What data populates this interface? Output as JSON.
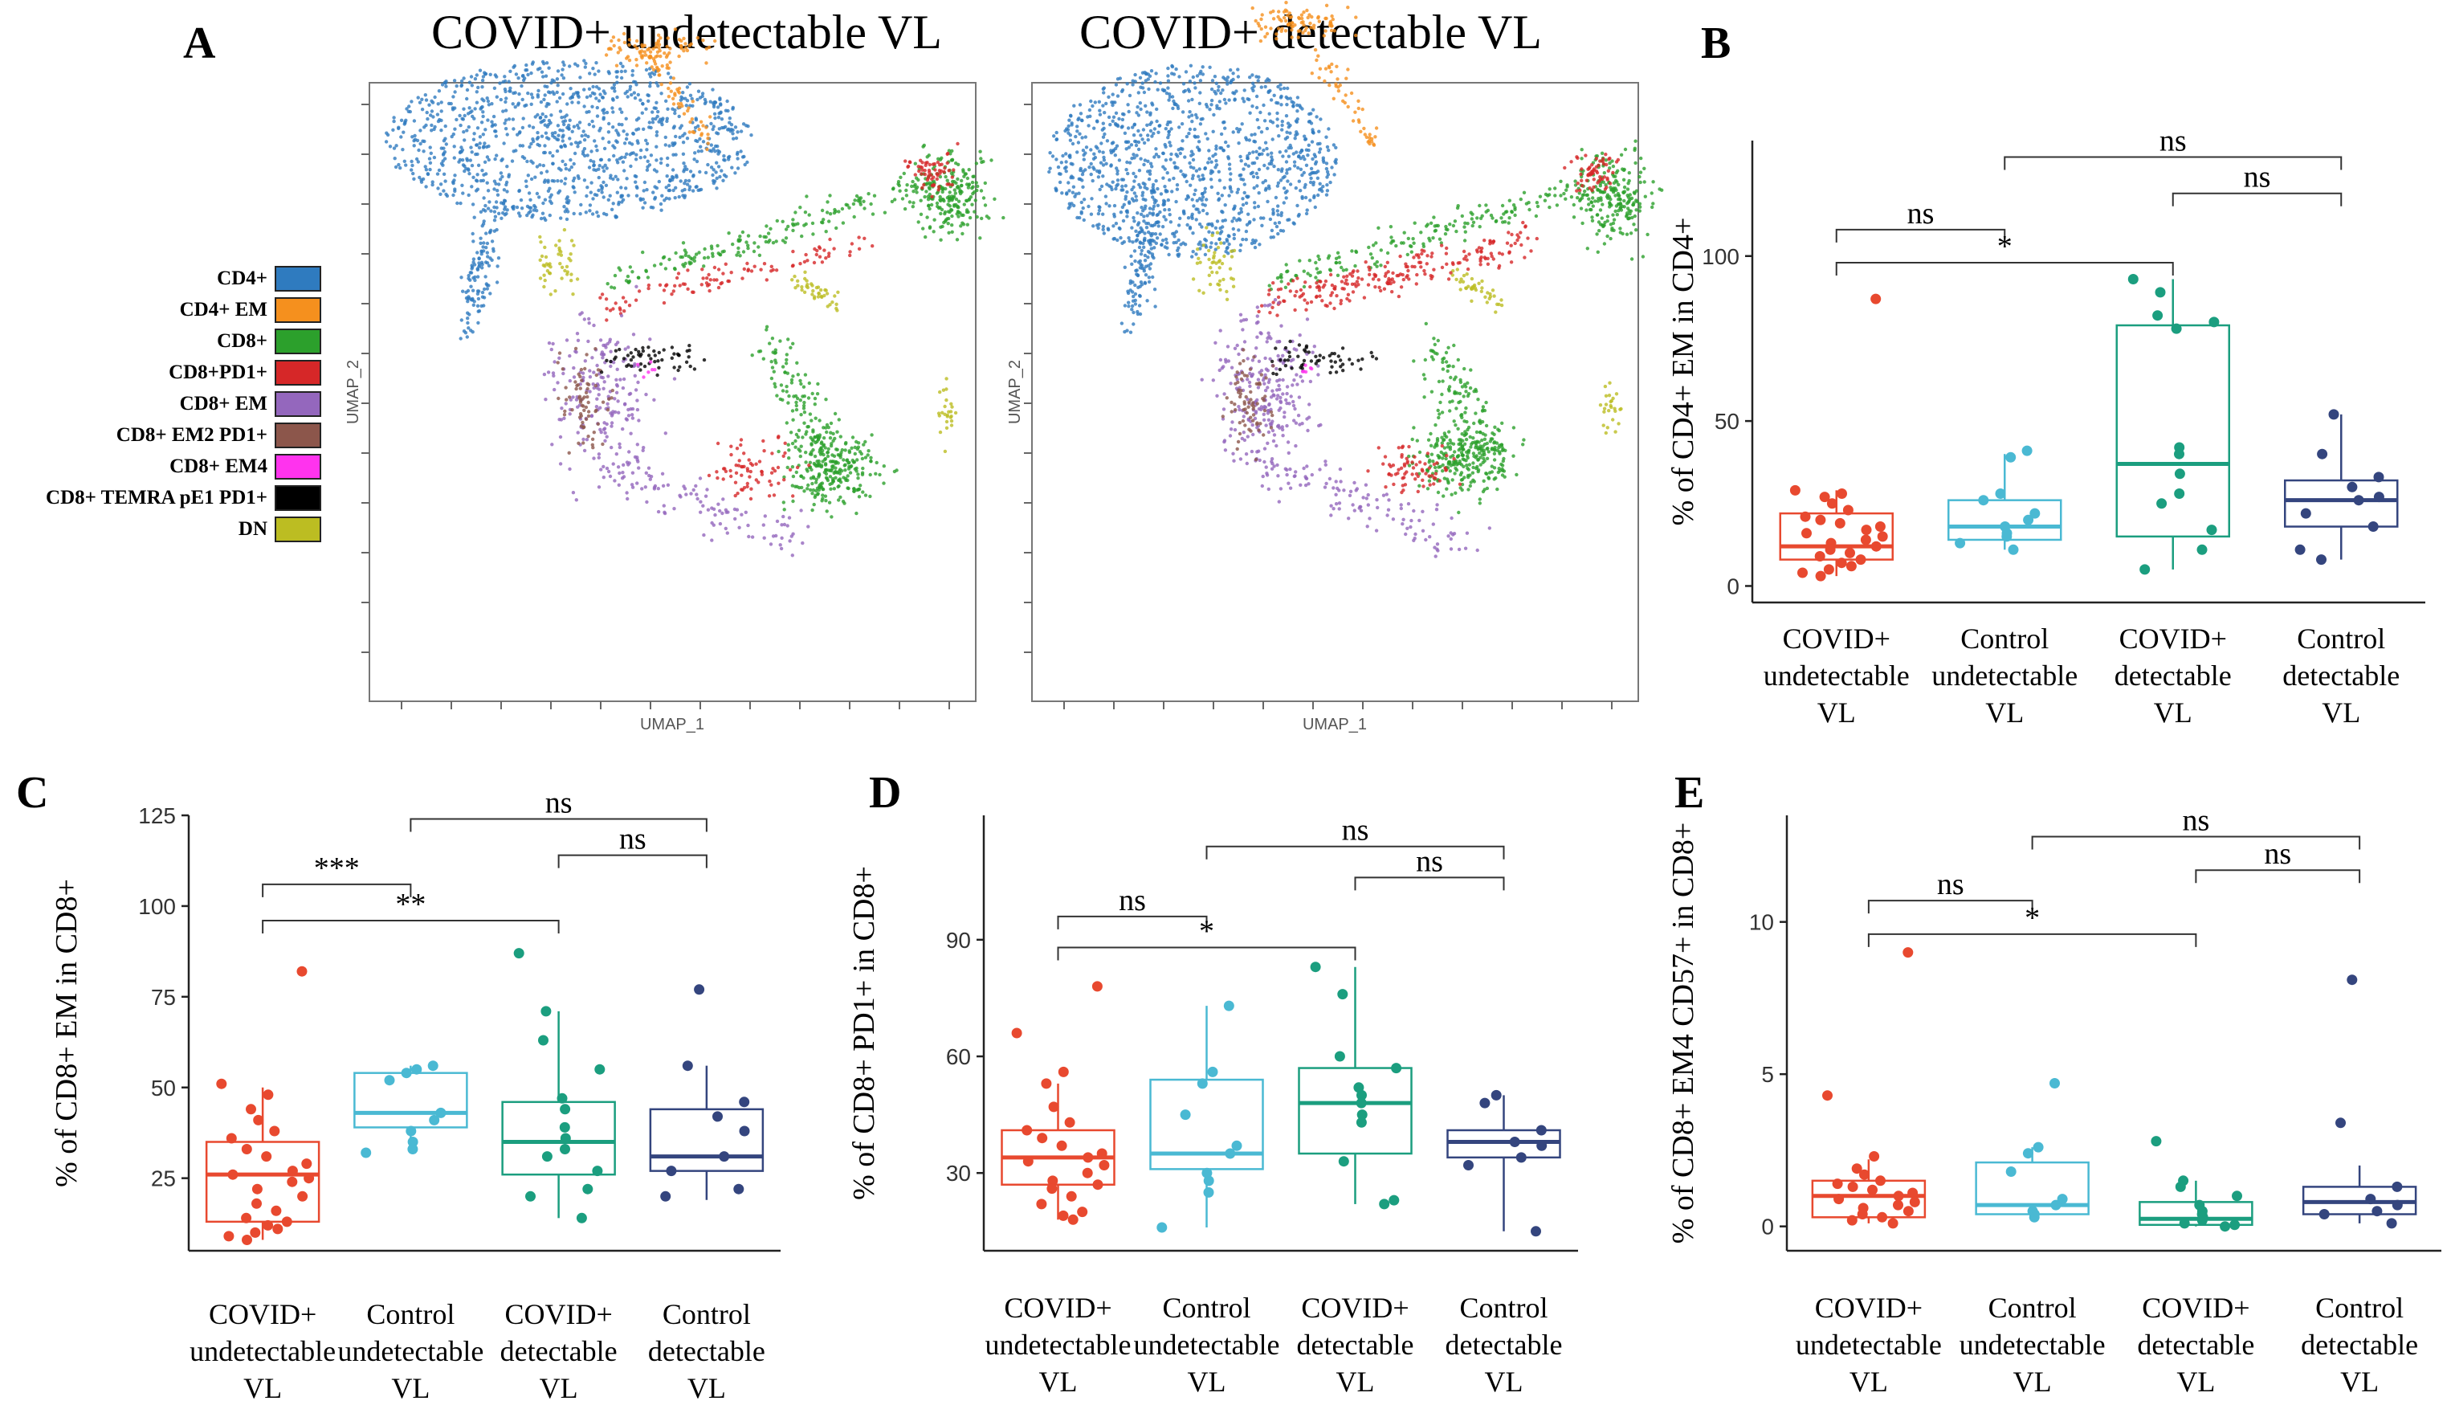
{
  "figure": {
    "panel_labels": [
      "A",
      "B",
      "C",
      "D",
      "E"
    ],
    "umap_titles": [
      "COVID+ undetectable VL",
      "COVID+ detectable VL"
    ],
    "umap_xlabel": "UMAP_1",
    "umap_ylabel": "UMAP_2"
  },
  "legend": {
    "items": [
      {
        "label": "CD4+",
        "color": "#2f7bbf"
      },
      {
        "label": "CD4+ EM",
        "color": "#f5901e"
      },
      {
        "label": "CD8+",
        "color": "#2ca02c"
      },
      {
        "label": "CD8+PD1+",
        "color": "#d62728"
      },
      {
        "label": "CD8+ EM",
        "color": "#9467bd"
      },
      {
        "label": "CD8+ EM2 PD1+",
        "color": "#8c564b"
      },
      {
        "label": "CD8+ EM4",
        "color": "#ff33ee"
      },
      {
        "label": "CD8+ TEMRA  pE1 PD1+",
        "color": "#000000"
      },
      {
        "label": "DN",
        "color": "#bcbd22"
      }
    ]
  },
  "group_colors": [
    "#e8492f",
    "#4ab9d3",
    "#1b9e7f",
    "#34457e"
  ],
  "chart_data": [
    {
      "panel": "B",
      "type": "box",
      "ylabel": "% of CD4+ EM in CD4+",
      "ylim": [
        -5,
        135
      ],
      "yticks": [
        0,
        50,
        100
      ],
      "categories": [
        "COVID+\nundetectable\nVL",
        "Control\nundetectable\nVL",
        "COVID+\ndetectable\nVL",
        "Control\ndetectable\nVL"
      ],
      "boxes": [
        {
          "q1": 8,
          "median": 12,
          "q3": 22,
          "whisker_low": 3,
          "whisker_high": 29
        },
        {
          "q1": 14,
          "median": 18,
          "q3": 26,
          "whisker_low": 11,
          "whisker_high": 40
        },
        {
          "q1": 15,
          "median": 37,
          "q3": 79,
          "whisker_low": 5,
          "whisker_high": 93
        },
        {
          "q1": 18,
          "median": 26,
          "q3": 32,
          "whisker_low": 8,
          "whisker_high": 52
        }
      ],
      "points": [
        [
          87,
          29,
          28,
          27,
          25,
          23,
          21,
          20,
          19,
          18,
          17,
          16,
          15,
          14,
          13,
          12,
          11,
          10,
          9,
          8,
          7,
          6,
          5,
          4,
          3
        ],
        [
          41,
          39,
          28,
          26,
          22,
          20,
          18,
          16,
          15,
          13,
          11
        ],
        [
          93,
          89,
          82,
          80,
          78,
          42,
          40,
          34,
          28,
          25,
          17,
          11,
          5
        ],
        [
          52,
          40,
          33,
          30,
          27,
          26,
          22,
          18,
          11,
          8
        ]
      ],
      "brackets": [
        {
          "from": 0,
          "to": 1,
          "label": "ns",
          "y": 108
        },
        {
          "from": 0,
          "to": 2,
          "label": "*",
          "y": 98
        },
        {
          "from": 1,
          "to": 3,
          "label": "ns",
          "y": 130
        },
        {
          "from": 2,
          "to": 3,
          "label": "ns",
          "y": 119
        }
      ]
    },
    {
      "panel": "C",
      "type": "box",
      "ylabel": "% of CD8+ EM in CD8+",
      "ylim": [
        5,
        125
      ],
      "yticks": [
        25,
        50,
        75,
        100,
        125
      ],
      "categories": [
        "COVID+\nundetectable\nVL",
        "Control\nundetectable\nVL",
        "COVID+\ndetectable\nVL",
        "Control\ndetectable\nVL"
      ],
      "boxes": [
        {
          "q1": 13,
          "median": 26,
          "q3": 35,
          "whisker_low": 8,
          "whisker_high": 50
        },
        {
          "q1": 39,
          "median": 43,
          "q3": 54,
          "whisker_low": 32,
          "whisker_high": 56
        },
        {
          "q1": 26,
          "median": 35,
          "q3": 46,
          "whisker_low": 14,
          "whisker_high": 71
        },
        {
          "q1": 27,
          "median": 31,
          "q3": 44,
          "whisker_low": 19,
          "whisker_high": 56
        }
      ],
      "points": [
        [
          82,
          51,
          48,
          44,
          41,
          38,
          36,
          33,
          31,
          29,
          27,
          26,
          25,
          24,
          22,
          20,
          18,
          16,
          14,
          13,
          12,
          11,
          10,
          9,
          8
        ],
        [
          56,
          55,
          54,
          52,
          43,
          41,
          38,
          35,
          33,
          32
        ],
        [
          87,
          71,
          63,
          55,
          47,
          44,
          39,
          36,
          33,
          31,
          27,
          22,
          20,
          14
        ],
        [
          77,
          56,
          46,
          42,
          38,
          31,
          27,
          22,
          20
        ]
      ],
      "brackets": [
        {
          "from": 0,
          "to": 1,
          "label": "***",
          "y": 106
        },
        {
          "from": 0,
          "to": 2,
          "label": "**",
          "y": 96
        },
        {
          "from": 1,
          "to": 3,
          "label": "ns",
          "y": 124
        },
        {
          "from": 2,
          "to": 3,
          "label": "ns",
          "y": 114
        }
      ]
    },
    {
      "panel": "D",
      "type": "box",
      "ylabel": "% of CD8+ PD1+ in CD8+",
      "ylim": [
        10,
        122
      ],
      "yticks": [
        30,
        60,
        90
      ],
      "categories": [
        "COVID+\nundetectable\nVL",
        "Control\nundetectable\nVL",
        "COVID+\ndetectable\nVL",
        "Control\ndetectable\nVL"
      ],
      "boxes": [
        {
          "q1": 27,
          "median": 34,
          "q3": 41,
          "whisker_low": 18,
          "whisker_high": 53
        },
        {
          "q1": 31,
          "median": 35,
          "q3": 54,
          "whisker_low": 16,
          "whisker_high": 73
        },
        {
          "q1": 35,
          "median": 48,
          "q3": 57,
          "whisker_low": 22,
          "whisker_high": 83
        },
        {
          "q1": 34,
          "median": 38,
          "q3": 41,
          "whisker_low": 15,
          "whisker_high": 50
        }
      ],
      "points": [
        [
          78,
          66,
          56,
          53,
          47,
          43,
          41,
          39,
          37,
          35,
          34,
          33,
          32,
          30,
          28,
          27,
          26,
          24,
          22,
          20,
          19,
          18
        ],
        [
          73,
          56,
          53,
          45,
          37,
          35,
          30,
          28,
          25,
          16
        ],
        [
          83,
          76,
          60,
          57,
          52,
          50,
          48,
          45,
          43,
          33,
          23,
          22
        ],
        [
          50,
          48,
          41,
          38,
          37,
          34,
          32,
          15
        ]
      ],
      "brackets": [
        {
          "from": 0,
          "to": 1,
          "label": "ns",
          "y": 96
        },
        {
          "from": 0,
          "to": 2,
          "label": "*",
          "y": 88
        },
        {
          "from": 1,
          "to": 3,
          "label": "ns",
          "y": 114
        },
        {
          "from": 2,
          "to": 3,
          "label": "ns",
          "y": 106
        }
      ]
    },
    {
      "panel": "E",
      "type": "box",
      "ylabel": "% of CD8+ EM4 CD57+ in CD8+",
      "ylim": [
        -0.8,
        13.5
      ],
      "yticks": [
        0,
        5,
        10
      ],
      "categories": [
        "COVID+\nundetectable\nVL",
        "Control\nundetectable\nVL",
        "COVID+\ndetectable\nVL",
        "Control\ndetectable\nVL"
      ],
      "boxes": [
        {
          "q1": 0.3,
          "median": 1.0,
          "q3": 1.5,
          "whisker_low": 0.1,
          "whisker_high": 2.2
        },
        {
          "q1": 0.4,
          "median": 0.7,
          "q3": 2.1,
          "whisker_low": 0.3,
          "whisker_high": 2.6
        },
        {
          "q1": 0.05,
          "median": 0.25,
          "q3": 0.8,
          "whisker_low": 0.0,
          "whisker_high": 1.5
        },
        {
          "q1": 0.4,
          "median": 0.8,
          "q3": 1.3,
          "whisker_low": 0.1,
          "whisker_high": 2.0
        }
      ],
      "points": [
        [
          9.0,
          4.3,
          2.3,
          1.9,
          1.7,
          1.5,
          1.4,
          1.3,
          1.2,
          1.1,
          1.0,
          0.9,
          0.8,
          0.7,
          0.6,
          0.5,
          0.4,
          0.3,
          0.2,
          0.1
        ],
        [
          4.7,
          2.6,
          2.4,
          1.8,
          0.9,
          0.7,
          0.5,
          0.4,
          0.3
        ],
        [
          2.8,
          1.5,
          1.3,
          1.0,
          0.7,
          0.5,
          0.4,
          0.3,
          0.2,
          0.1,
          0.05,
          0.0
        ],
        [
          8.1,
          3.4,
          1.3,
          0.9,
          0.7,
          0.5,
          0.4,
          0.1
        ]
      ],
      "brackets": [
        {
          "from": 0,
          "to": 1,
          "label": "ns",
          "y": 10.7
        },
        {
          "from": 0,
          "to": 2,
          "label": "*",
          "y": 9.6
        },
        {
          "from": 1,
          "to": 3,
          "label": "ns",
          "y": 12.8
        },
        {
          "from": 2,
          "to": 3,
          "label": "ns",
          "y": 11.7
        }
      ]
    }
  ]
}
